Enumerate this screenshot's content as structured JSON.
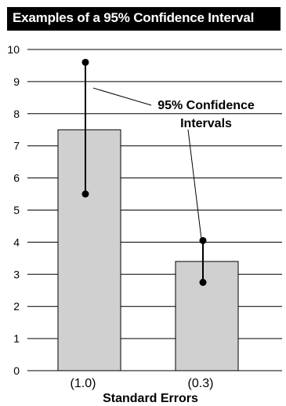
{
  "chart_data": {
    "type": "bar",
    "title": "Examples of a 95% Confidence Interval",
    "xlabel": "Standard Errors",
    "ylabel": "",
    "ylim": [
      0,
      10
    ],
    "yticks": [
      "0",
      "1",
      "2",
      "3",
      "4",
      "5",
      "6",
      "7",
      "8",
      "9",
      "10"
    ],
    "categories": [
      "(1.0)",
      "(0.3)"
    ],
    "values": [
      7.5,
      3.4
    ],
    "error_bars": [
      {
        "low": 5.5,
        "high": 9.6
      },
      {
        "low": 2.75,
        "high": 4.05
      }
    ],
    "annotation": [
      "95% Confidence",
      "Intervals"
    ],
    "grid": true,
    "colors": {
      "bar_fill": "#d0d0d0",
      "bar_stroke": "#000000",
      "grid": "#000000"
    }
  }
}
